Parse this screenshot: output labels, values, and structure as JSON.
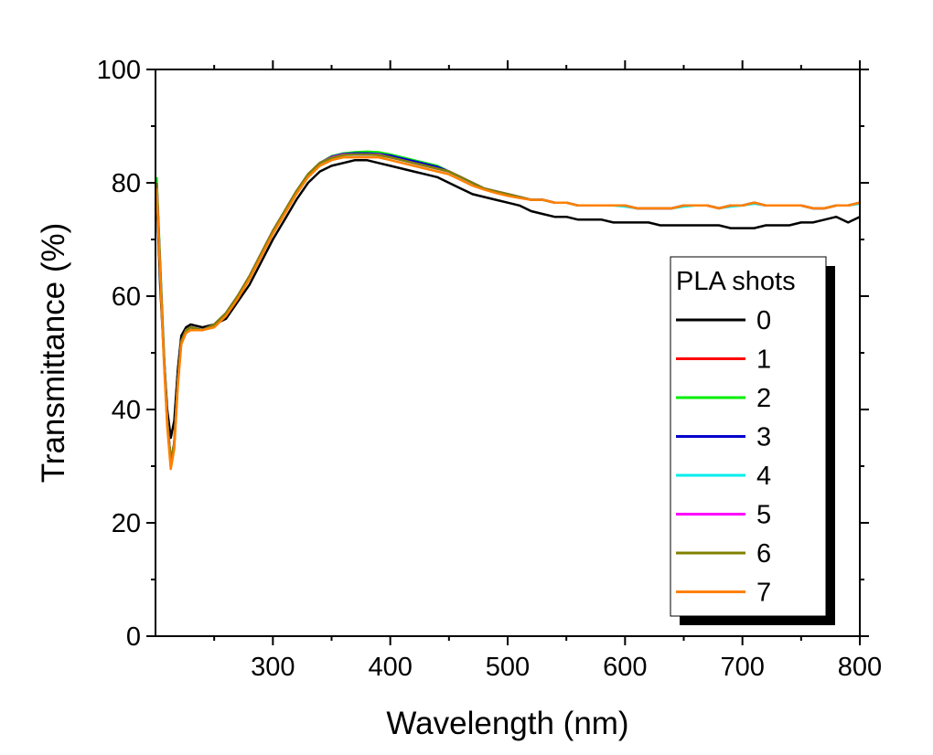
{
  "chart_data": {
    "type": "line",
    "title": "",
    "xlabel": "Wavelength (nm)",
    "ylabel": "Transmittance (%)",
    "xlim": [
      200,
      800
    ],
    "ylim": [
      0,
      100
    ],
    "xticks": [
      300,
      400,
      500,
      600,
      700,
      800
    ],
    "yticks": [
      0,
      20,
      40,
      60,
      80,
      100
    ],
    "xtick_labels": [
      "300",
      "400",
      "500",
      "600",
      "700",
      "800"
    ],
    "ytick_labels": [
      "0",
      "20",
      "40",
      "60",
      "80",
      "100"
    ],
    "grid": false,
    "legend": {
      "title": "PLA shots",
      "position": "right"
    },
    "x": [
      201,
      204,
      207,
      210,
      213,
      216,
      219,
      222,
      226,
      230,
      240,
      250,
      260,
      270,
      280,
      290,
      300,
      310,
      320,
      330,
      340,
      350,
      360,
      370,
      380,
      390,
      400,
      410,
      420,
      430,
      440,
      450,
      460,
      470,
      480,
      490,
      500,
      510,
      520,
      530,
      540,
      550,
      560,
      570,
      580,
      590,
      600,
      610,
      620,
      630,
      640,
      650,
      660,
      670,
      680,
      690,
      700,
      710,
      720,
      730,
      740,
      750,
      760,
      770,
      780,
      790,
      800
    ],
    "series": [
      {
        "name": "0",
        "color": "#000000",
        "values": [
          78,
          62,
          50,
          40,
          35,
          38,
          47,
          53,
          54.5,
          55,
          54.5,
          55,
          56,
          59,
          62,
          66,
          70,
          73.5,
          77,
          80,
          82,
          83,
          83.5,
          84,
          84,
          83.5,
          83,
          82.5,
          82,
          81.5,
          81,
          80,
          79,
          78,
          77.5,
          77,
          76.5,
          76,
          75,
          74.5,
          74,
          74,
          73.5,
          73.5,
          73.5,
          73,
          73,
          73,
          73,
          72.5,
          72.5,
          72.5,
          72.5,
          72.5,
          72.5,
          72,
          72,
          72,
          72.5,
          72.5,
          72.5,
          73,
          73,
          73.5,
          74,
          73,
          74
        ]
      },
      {
        "name": "1",
        "color": "#ff0000",
        "values": [
          80,
          65,
          50,
          38,
          31,
          34,
          45,
          52,
          54,
          54.5,
          54,
          55,
          57,
          60,
          63.5,
          67.5,
          71.5,
          75,
          78.5,
          81.5,
          83.5,
          84.5,
          85,
          85,
          85,
          85,
          84.5,
          84,
          83.5,
          83,
          82.5,
          82,
          81,
          80,
          79,
          78.5,
          78,
          77.5,
          77,
          77,
          76.5,
          76.5,
          76,
          76,
          76,
          76,
          76,
          75.5,
          75.5,
          75.5,
          75.5,
          76,
          76,
          76,
          75.5,
          76,
          76,
          76.5,
          76,
          76,
          76,
          76,
          75.5,
          75.5,
          76,
          76,
          76.5
        ]
      },
      {
        "name": "2",
        "color": "#00ee00",
        "values": [
          81,
          66,
          51,
          38,
          31,
          34,
          45,
          52,
          54,
          54.5,
          54,
          55,
          57,
          60,
          63.5,
          67.5,
          71.5,
          75,
          78.5,
          81.5,
          83.5,
          84.7,
          85.2,
          85.4,
          85.5,
          85.4,
          85,
          84.5,
          84,
          83.5,
          83,
          82,
          81,
          80,
          79,
          78.5,
          78,
          77.5,
          77,
          77,
          76.5,
          76.5,
          76,
          76,
          76,
          76,
          76,
          75.5,
          75.5,
          75.5,
          75.5,
          76,
          76,
          76,
          75.5,
          76,
          76,
          76.5,
          76,
          76,
          76,
          76,
          75.5,
          75.5,
          76,
          76,
          76.5
        ]
      },
      {
        "name": "3",
        "color": "#0000cc",
        "values": [
          80,
          65,
          50,
          38,
          31,
          34,
          45,
          52,
          54,
          54.5,
          54,
          55,
          57,
          60,
          63.5,
          67.5,
          71.5,
          75,
          78.5,
          81.5,
          83.5,
          84.6,
          85.1,
          85.2,
          85.2,
          85.1,
          84.8,
          84.3,
          83.8,
          83.3,
          82.8,
          82,
          81,
          80,
          79,
          78.5,
          78,
          77.5,
          77,
          77,
          76.5,
          76.5,
          76,
          76,
          76,
          76,
          76,
          75.5,
          75.5,
          75.5,
          75.5,
          76,
          76,
          76,
          75.5,
          76,
          76,
          76.5,
          76,
          76,
          76,
          76,
          75.5,
          75.5,
          76,
          76,
          76.5
        ]
      },
      {
        "name": "4",
        "color": "#00eeee",
        "values": [
          80,
          65,
          50,
          38,
          31,
          34,
          45,
          52,
          54,
          54.5,
          54,
          55,
          57,
          60,
          63.5,
          67.5,
          71.5,
          75,
          78.5,
          81.5,
          83.5,
          84.5,
          85,
          85,
          85,
          85,
          84.5,
          84,
          83.5,
          83,
          82.5,
          82,
          81,
          80,
          79,
          78.5,
          78,
          77.5,
          77,
          77,
          76.5,
          76.5,
          76,
          76,
          76,
          76,
          75.8,
          75.5,
          75.5,
          75.5,
          75.5,
          75.8,
          76,
          76,
          75.5,
          75.8,
          76,
          76.3,
          76,
          76,
          76,
          76,
          75.5,
          75.5,
          76,
          76,
          76.3
        ]
      },
      {
        "name": "5",
        "color": "#ff00ff",
        "values": [
          80,
          65,
          50,
          38,
          31,
          34,
          45,
          52,
          54,
          54.5,
          54,
          55,
          57,
          60,
          63.5,
          67.5,
          71.5,
          75,
          78.5,
          81.5,
          83.5,
          84.5,
          85,
          85,
          85,
          85,
          84.5,
          84,
          83.5,
          83,
          82.5,
          82,
          81,
          80,
          79,
          78.5,
          78,
          77.5,
          77,
          77,
          76.5,
          76.5,
          76,
          76,
          76,
          76,
          76,
          75.5,
          75.5,
          75.5,
          75.5,
          76,
          76,
          76,
          75.5,
          76,
          76,
          76.5,
          76,
          76,
          76,
          76,
          75.5,
          75.5,
          76,
          76,
          76.5
        ]
      },
      {
        "name": "6",
        "color": "#808000",
        "values": [
          80,
          65,
          50,
          38,
          31,
          34,
          45,
          52,
          54,
          54.5,
          54,
          55,
          57,
          60,
          63.5,
          67.5,
          71.5,
          75,
          78.5,
          81.5,
          83.5,
          84.4,
          84.9,
          85,
          85,
          84.9,
          84.5,
          84,
          83.5,
          83,
          82.5,
          82,
          81,
          80,
          79,
          78.5,
          78,
          77.5,
          77,
          77,
          76.5,
          76.5,
          76,
          76,
          76,
          76,
          76,
          75.5,
          75.5,
          75.5,
          75.5,
          76,
          76,
          76,
          75.5,
          76,
          76,
          76.5,
          76,
          76,
          76,
          76,
          75.5,
          75.5,
          76,
          76,
          76.5
        ]
      },
      {
        "name": "7",
        "color": "#ff8000",
        "values": [
          79,
          64,
          49,
          37,
          29.5,
          33,
          44,
          51.5,
          53.5,
          54,
          54,
          54.5,
          56.5,
          59.5,
          63,
          67,
          71,
          74.5,
          78,
          81,
          83,
          84,
          84.5,
          84.5,
          84.5,
          84.5,
          84,
          83.5,
          83,
          82.5,
          82,
          81.5,
          80.5,
          79.5,
          78.8,
          78.2,
          77.7,
          77.3,
          77,
          77,
          76.5,
          76.5,
          76,
          76,
          76,
          76,
          76,
          75.5,
          75.5,
          75.5,
          75.5,
          76,
          76,
          76,
          75.5,
          76,
          76,
          76.5,
          76,
          76,
          76,
          76,
          75.5,
          75.5,
          76,
          76,
          76.5
        ]
      }
    ]
  }
}
